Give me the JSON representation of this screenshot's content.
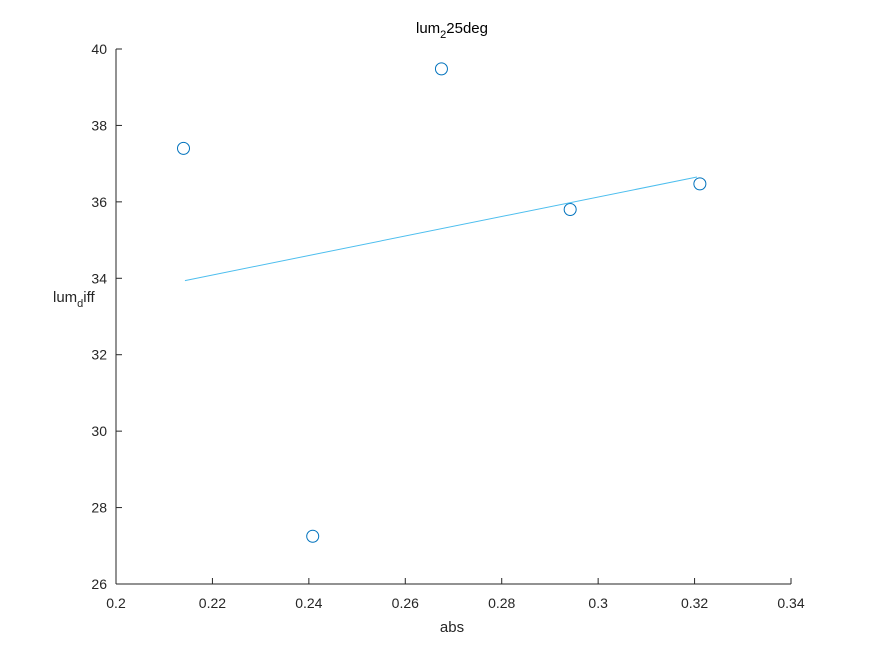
{
  "chart_data": {
    "type": "scatter",
    "title": {
      "main": "lum",
      "sub": "2",
      "rest": "25deg"
    },
    "xlabel": "abs",
    "ylabel": {
      "main": "lum",
      "sub": "d",
      "rest": "iff"
    },
    "xlim": [
      0.2,
      0.34
    ],
    "ylim": [
      26,
      40
    ],
    "xticks": [
      0.2,
      0.22,
      0.24,
      0.26,
      0.28,
      0.3,
      0.32,
      0.34
    ],
    "xtick_labels": [
      "0.2",
      "0.22",
      "0.24",
      "0.26",
      "0.28",
      "0.3",
      "0.32",
      "0.34"
    ],
    "yticks": [
      26,
      28,
      30,
      32,
      34,
      36,
      38,
      40
    ],
    "ytick_labels": [
      "26",
      "28",
      "30",
      "32",
      "34",
      "36",
      "38",
      "40"
    ],
    "grid": false,
    "series": [
      {
        "kind": "points",
        "marker": "open-circle",
        "x": [
          0.214,
          0.2408,
          0.2675,
          0.2942,
          0.3211
        ],
        "y": [
          37.4,
          27.25,
          39.48,
          35.8,
          36.47
        ]
      },
      {
        "kind": "fit-line",
        "x": [
          0.2143,
          0.3205
        ],
        "y": [
          33.94,
          36.65
        ]
      }
    ],
    "colors": {
      "series": "#0072BD",
      "fit": "#4DBEEE",
      "axis": "#262626"
    }
  }
}
